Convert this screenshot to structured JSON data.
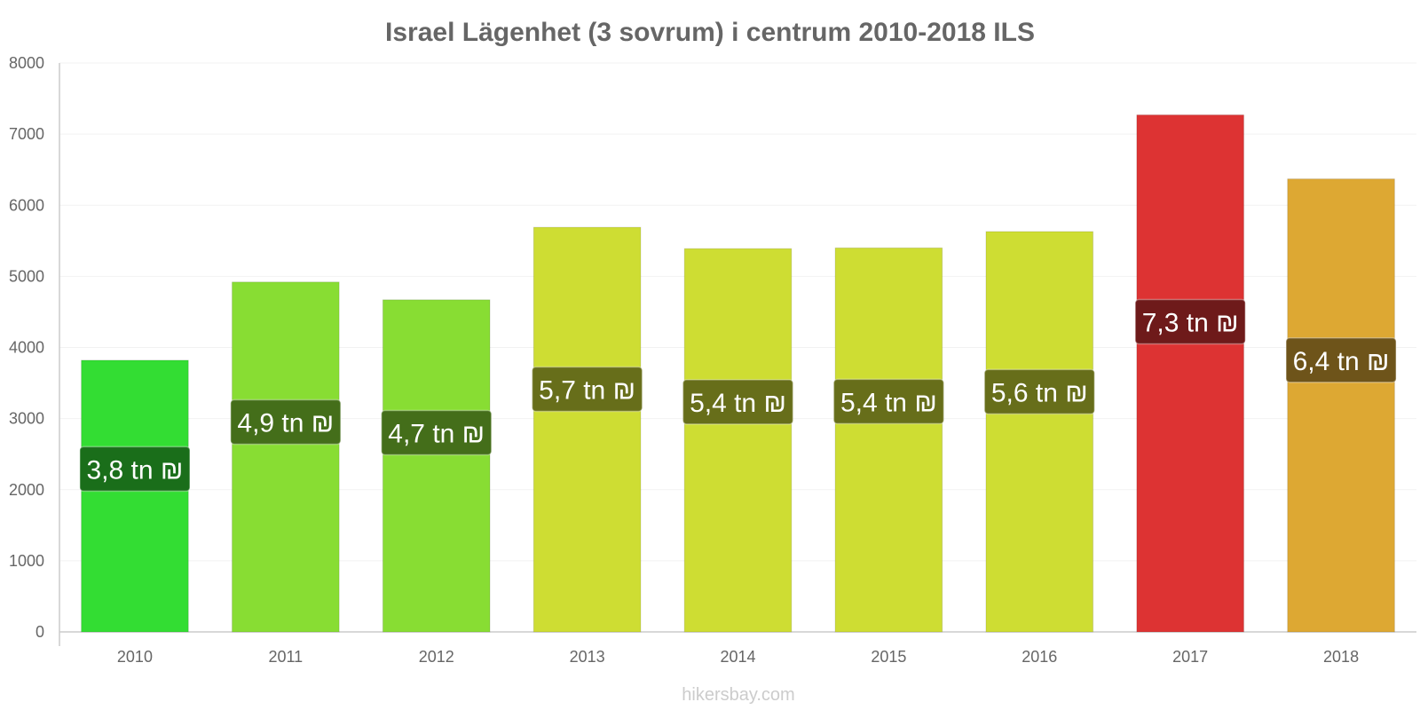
{
  "chart_data": {
    "type": "bar",
    "title": "Israel Lägenhet (3 sovrum) i centrum 2010-2018 ILS",
    "xlabel": "",
    "ylabel": "",
    "ylim": [
      0,
      8000
    ],
    "yticks": [
      "0",
      "1000",
      "2000",
      "3000",
      "4000",
      "5000",
      "6000",
      "7000",
      "8000"
    ],
    "categories": [
      "2010",
      "2011",
      "2012",
      "2013",
      "2014",
      "2015",
      "2016",
      "2017",
      "2018"
    ],
    "values": [
      3820,
      4920,
      4670,
      5690,
      5390,
      5400,
      5630,
      7270,
      6370
    ],
    "data_labels": [
      "3,8 tn ₪",
      "4,9 tn ₪",
      "4,7 tn ₪",
      "5,7 tn ₪",
      "5,4 tn ₪",
      "5,4 tn ₪",
      "5,6 tn ₪",
      "7,3 tn ₪",
      "6,4 tn ₪"
    ],
    "bar_colors": [
      "#33dd33",
      "#88dd33",
      "#88dd33",
      "#cedd33",
      "#cedd33",
      "#cedd33",
      "#cedd33",
      "#dd3333",
      "#dda833"
    ],
    "label_bg_colors": [
      "#1a6e1a",
      "#446e1a",
      "#446e1a",
      "#676e1a",
      "#676e1a",
      "#676e1a",
      "#676e1a",
      "#6e1a1a",
      "#6e541a"
    ],
    "grid": true,
    "legend": "none"
  },
  "footer": "hikersbay.com"
}
